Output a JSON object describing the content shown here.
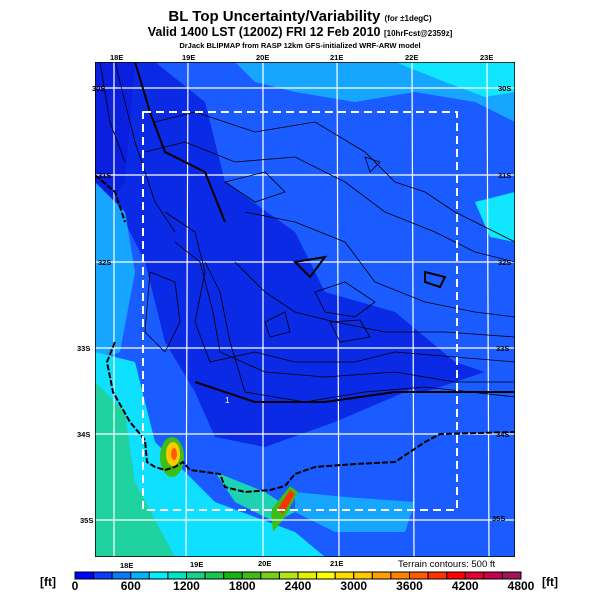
{
  "header": {
    "title": "BL Top Uncertainty/Variability",
    "title_note": "(for ±1degC)",
    "valid": "Valid 1400 LST (1200Z) FRI 12 Feb 2010",
    "valid_note": "[10hrFcst@2359z]",
    "credit": "DrJack BLIPMAP from RASP 12km GFS-initialized WRF-ARW model"
  },
  "map": {
    "lon_labels_top": [
      "18E",
      "19E",
      "20E",
      "21E",
      "22E",
      "23E"
    ],
    "lon_labels_bottom": [
      "18E",
      "19E",
      "20E",
      "21E"
    ],
    "lat_labels_left": [
      "30S",
      "31S",
      "32S",
      "33S",
      "34S",
      "35S"
    ],
    "lat_labels_right": [
      "30S",
      "31S",
      "32S",
      "33S",
      "34S",
      "35S"
    ],
    "marker_label": "1",
    "terrain_note": "Terrain contours: 500 ft"
  },
  "colorbar": {
    "unit_left": "[ft]",
    "unit_right": "[ft]",
    "labels": [
      "0",
      "600",
      "1200",
      "1800",
      "2400",
      "3000",
      "3600",
      "4200",
      "4800"
    ],
    "min": 0,
    "max": 4800,
    "step": 200,
    "colors": [
      "#0000ff",
      "#0a3cff",
      "#0a78ff",
      "#00b4ff",
      "#00f0ff",
      "#00e6c8",
      "#14d28c",
      "#14c850",
      "#14b414",
      "#3cbe14",
      "#78d214",
      "#b4e614",
      "#e6f000",
      "#ffff00",
      "#ffdc00",
      "#ffc800",
      "#ffa000",
      "#ff8200",
      "#ff5a00",
      "#ff3200",
      "#ff0000",
      "#e60032",
      "#c80050",
      "#a0145a"
    ]
  }
}
